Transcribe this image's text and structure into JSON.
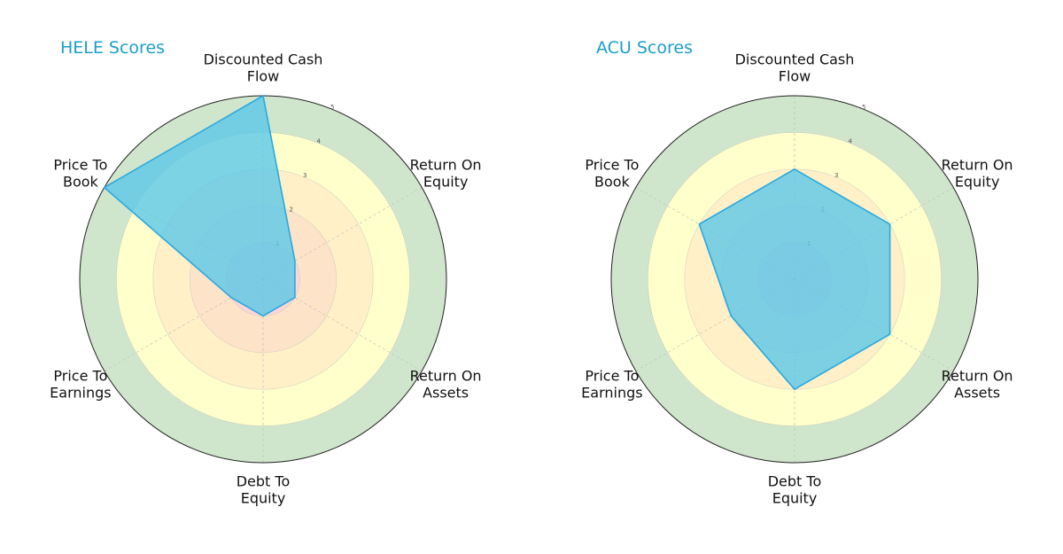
{
  "chart_data": [
    {
      "type": "radar",
      "title": "HELE Scores",
      "axes": [
        [
          "Discounted Cash",
          "Flow"
        ],
        [
          "Return On",
          "Equity"
        ],
        [
          "Return On",
          "Assets"
        ],
        [
          "Debt To",
          "Equity"
        ],
        [
          "Price To",
          "Earnings"
        ],
        [
          "Price To",
          "Book"
        ]
      ],
      "series": [
        {
          "values": [
            5,
            1,
            1,
            1,
            1,
            5
          ]
        }
      ],
      "rlim": [
        0,
        5
      ],
      "rticks": [
        "1",
        "2",
        "3",
        "4",
        "5"
      ]
    },
    {
      "type": "radar",
      "title": "ACU Scores",
      "axes": [
        [
          "Discounted Cash",
          "Flow"
        ],
        [
          "Return On",
          "Equity"
        ],
        [
          "Return On",
          "Assets"
        ],
        [
          "Debt To",
          "Equity"
        ],
        [
          "Price To",
          "Earnings"
        ],
        [
          "Price To",
          "Book"
        ]
      ],
      "series": [
        {
          "values": [
            3,
            3,
            3,
            3,
            2,
            3
          ]
        }
      ],
      "rlim": [
        0,
        5
      ],
      "rticks": [
        "1",
        "2",
        "3",
        "4",
        "5"
      ]
    }
  ],
  "colors": {
    "title": "#1a9fc7",
    "series_fill": "#5bc8e8",
    "series_stroke": "#29a9e0",
    "band_1": "#ffd6d6",
    "band_2": "#fde3c8",
    "band_3": "#fff0c8",
    "band_4": "#ffffcc",
    "band_5": "#d0e6cc",
    "outline": "#222222",
    "grid": "#bbbbbb"
  }
}
